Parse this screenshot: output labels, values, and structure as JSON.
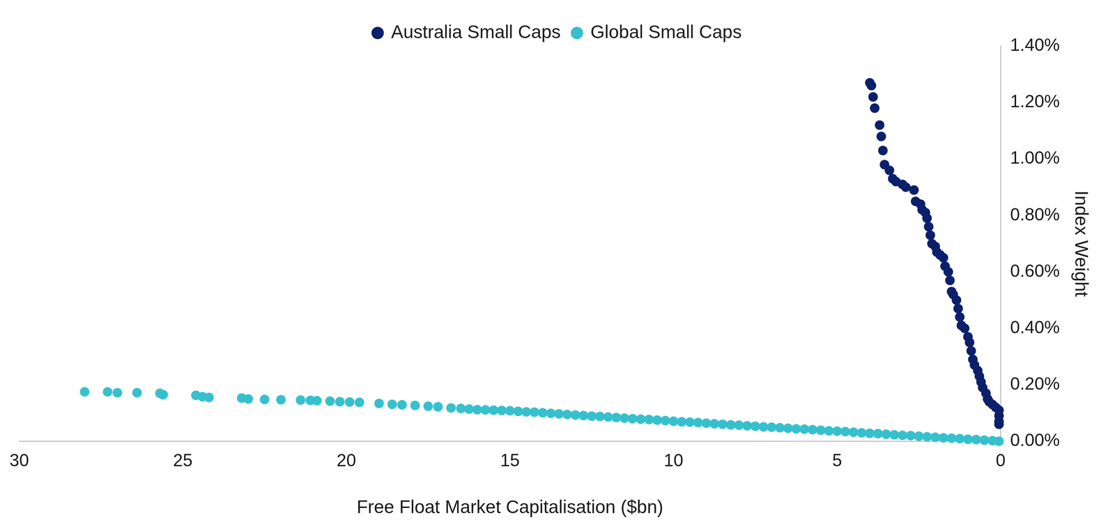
{
  "chart_data": {
    "type": "scatter",
    "x_label": "Free Float Market Capitalisation ($bn)",
    "y_label": "Index Weight",
    "xlim": [
      30,
      0
    ],
    "xticks": [
      30,
      25,
      20,
      15,
      10,
      5,
      0
    ],
    "ylim": [
      0,
      1.4
    ],
    "yticks": [
      {
        "value": 0,
        "label": "0.00%"
      },
      {
        "value": 0.2,
        "label": "0.20%"
      },
      {
        "value": 0.4,
        "label": "0.40%"
      },
      {
        "value": 0.6,
        "label": "0.60%"
      },
      {
        "value": 0.8,
        "label": "0.80%"
      },
      {
        "value": 1.0,
        "label": "1.00%"
      },
      {
        "value": 1.2,
        "label": "1.20%"
      },
      {
        "value": 1.4,
        "label": "1.40%"
      }
    ],
    "grid": false,
    "legend": "top",
    "marker": "circle",
    "series": [
      {
        "name": "Australia Small Caps",
        "color": "#0b1f6b",
        "x": [
          4.0,
          3.95,
          3.9,
          3.85,
          3.7,
          3.65,
          3.6,
          3.55,
          3.4,
          3.3,
          3.2,
          3.0,
          2.9,
          2.65,
          2.6,
          2.45,
          2.4,
          2.3,
          2.25,
          2.2,
          2.15,
          2.1,
          2.0,
          1.95,
          1.85,
          1.75,
          1.7,
          1.6,
          1.55,
          1.5,
          1.45,
          1.35,
          1.3,
          1.25,
          1.2,
          1.1,
          1.0,
          0.95,
          0.9,
          0.85,
          0.8,
          0.7,
          0.65,
          0.6,
          0.55,
          0.45,
          0.4,
          0.35,
          0.25,
          0.15,
          0.05,
          0.05,
          0.05,
          0.05
        ],
        "values": [
          1.27,
          1.26,
          1.22,
          1.18,
          1.12,
          1.08,
          1.03,
          0.98,
          0.96,
          0.93,
          0.92,
          0.91,
          0.9,
          0.89,
          0.85,
          0.84,
          0.82,
          0.81,
          0.79,
          0.76,
          0.73,
          0.7,
          0.69,
          0.67,
          0.66,
          0.65,
          0.62,
          0.6,
          0.57,
          0.53,
          0.52,
          0.5,
          0.47,
          0.44,
          0.41,
          0.4,
          0.37,
          0.35,
          0.32,
          0.29,
          0.27,
          0.25,
          0.23,
          0.21,
          0.19,
          0.17,
          0.15,
          0.14,
          0.13,
          0.12,
          0.11,
          0.09,
          0.07,
          0.06
        ]
      },
      {
        "name": "Global Small Caps",
        "color": "#36c0ce",
        "x": [
          28.0,
          27.3,
          27.0,
          26.4,
          25.7,
          25.6,
          24.6,
          24.4,
          24.2,
          23.2,
          23.0,
          22.5,
          22.0,
          21.4,
          21.1,
          20.9,
          20.5,
          20.2,
          19.9,
          19.6,
          19.0,
          18.6,
          18.3,
          17.9,
          17.5,
          17.2,
          16.8,
          16.5,
          16.25,
          16.0,
          15.75,
          15.5,
          15.25,
          15.0,
          14.75,
          14.5,
          14.25,
          14.0,
          13.75,
          13.5,
          13.25,
          13.0,
          12.75,
          12.5,
          12.25,
          12.0,
          11.75,
          11.5,
          11.25,
          11.0,
          10.75,
          10.5,
          10.25,
          10.0,
          9.75,
          9.5,
          9.25,
          9.0,
          8.75,
          8.5,
          8.25,
          8.0,
          7.75,
          7.5,
          7.25,
          7.0,
          6.75,
          6.5,
          6.25,
          6.0,
          5.75,
          5.5,
          5.25,
          5.0,
          4.75,
          4.5,
          4.25,
          4.0,
          3.75,
          3.5,
          3.25,
          3.0,
          2.75,
          2.5,
          2.25,
          2.0,
          1.75,
          1.5,
          1.25,
          1.0,
          0.75,
          0.5,
          0.25,
          0.05
        ],
        "values": [
          0.175,
          0.175,
          0.172,
          0.172,
          0.17,
          0.165,
          0.163,
          0.158,
          0.155,
          0.153,
          0.15,
          0.148,
          0.147,
          0.146,
          0.145,
          0.144,
          0.142,
          0.14,
          0.139,
          0.138,
          0.134,
          0.131,
          0.129,
          0.127,
          0.124,
          0.122,
          0.118,
          0.116,
          0.114,
          0.112,
          0.111,
          0.11,
          0.109,
          0.108,
          0.106,
          0.104,
          0.103,
          0.101,
          0.099,
          0.097,
          0.095,
          0.093,
          0.091,
          0.089,
          0.088,
          0.086,
          0.084,
          0.082,
          0.08,
          0.078,
          0.077,
          0.075,
          0.073,
          0.071,
          0.069,
          0.068,
          0.066,
          0.064,
          0.062,
          0.06,
          0.058,
          0.057,
          0.055,
          0.053,
          0.051,
          0.05,
          0.048,
          0.046,
          0.044,
          0.043,
          0.041,
          0.039,
          0.037,
          0.036,
          0.034,
          0.032,
          0.03,
          0.028,
          0.027,
          0.025,
          0.023,
          0.021,
          0.02,
          0.018,
          0.016,
          0.014,
          0.012,
          0.011,
          0.009,
          0.007,
          0.006,
          0.004,
          0.002,
          0.0
        ]
      }
    ]
  }
}
